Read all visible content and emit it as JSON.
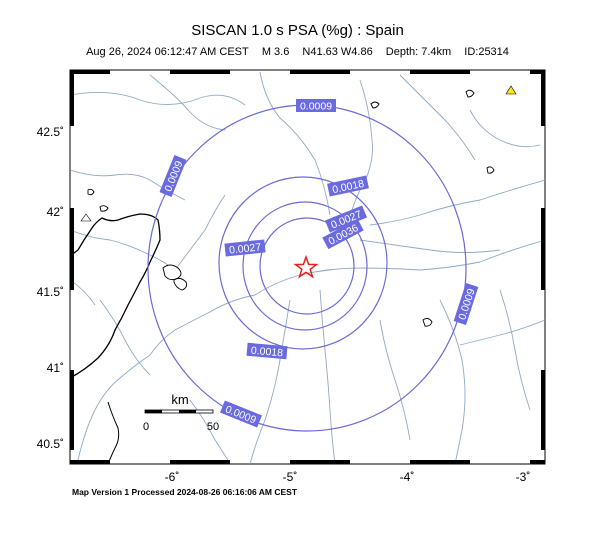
{
  "header": {
    "title": "SISCAN 1.0 s PSA (%g) : Spain",
    "date": "Aug 26, 2024 06:12:47 AM CEST",
    "magnitude": "M 3.6",
    "location": "N41.63 W4.86",
    "depth": "Depth: 7.4km",
    "event_id": "ID:25314"
  },
  "footer": "Map Version 1 Processed 2024-08-26 06:16:06 AM CEST",
  "axes": {
    "lon_labels": [
      "-6˚",
      "-5˚",
      "-4˚",
      "-3˚"
    ],
    "lat_labels": [
      "42.5˚",
      "42˚",
      "41.5˚",
      "41˚",
      "40.5˚"
    ]
  },
  "epicenter": {
    "lat": 41.63,
    "lon": -4.86,
    "marker": "star-icon",
    "color": "#e8201a"
  },
  "contours": [
    {
      "label": "0.0036"
    },
    {
      "label": "0.0027"
    },
    {
      "label": "0.0018"
    },
    {
      "label": "0.0009"
    }
  ],
  "contour_color": "#6b6bd6",
  "label_bg": "#6b6be0",
  "scale_bar": {
    "unit": "km",
    "start": "0",
    "end": "50"
  },
  "station_color": "#ffe21a"
}
